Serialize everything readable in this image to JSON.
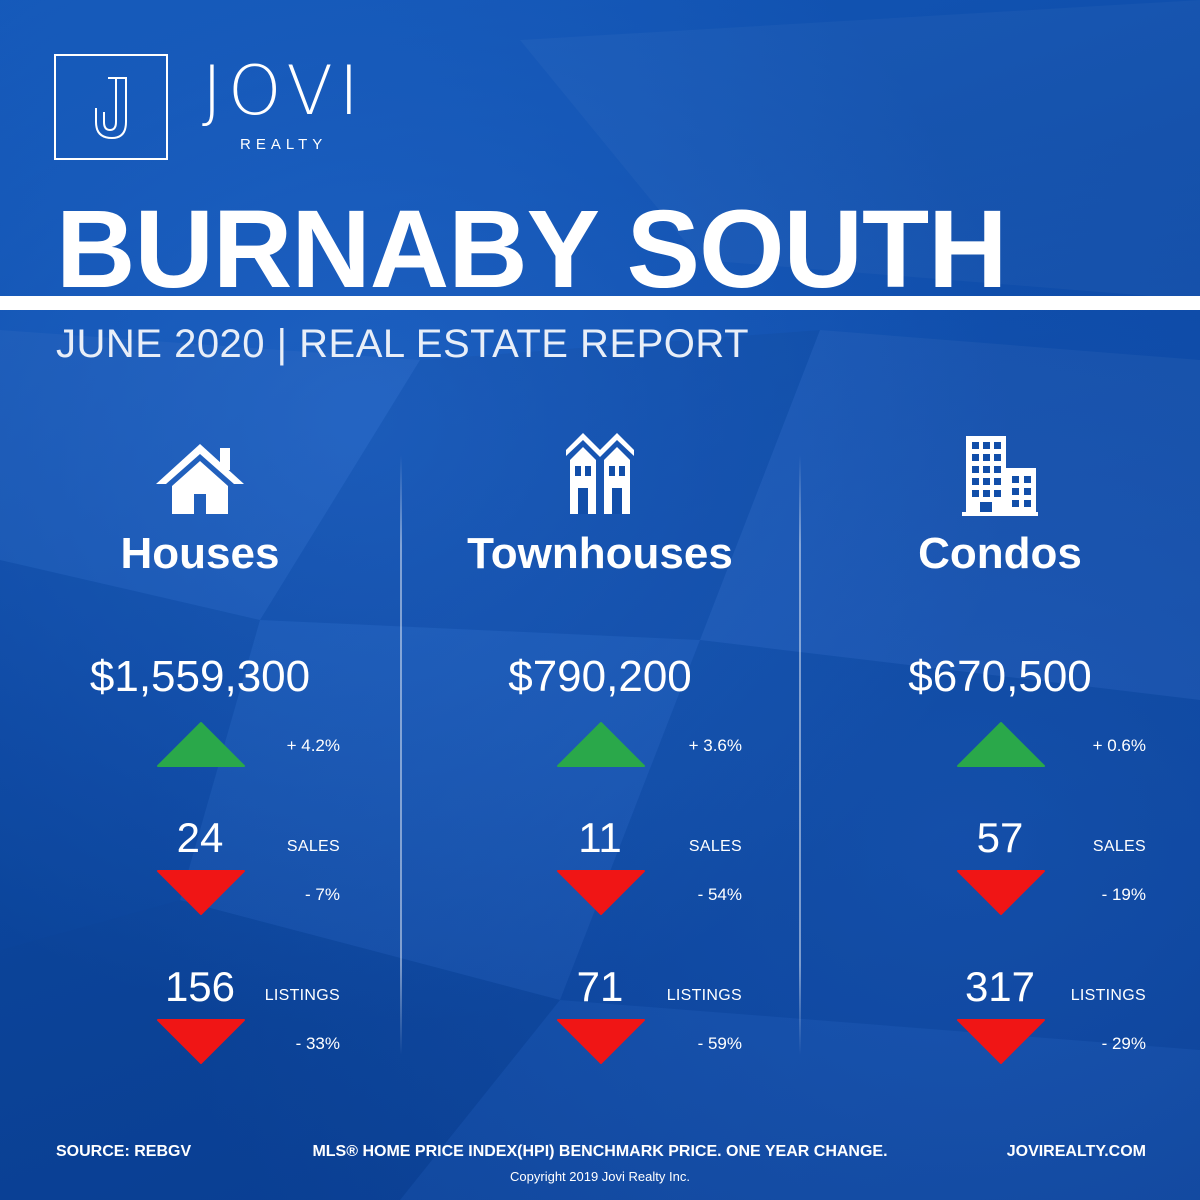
{
  "brand": {
    "name": "JOVI",
    "sub": "REALTY",
    "logo_letter": "J"
  },
  "title": "BURNABY SOUTH",
  "subtitle": "JUNE 2020 | REAL ESTATE REPORT",
  "colors": {
    "background": "#0f4fae",
    "up": "#2aa84a",
    "down": "#f01515",
    "text": "#ffffff"
  },
  "columns": [
    {
      "name": "Houses",
      "icon": "house-icon",
      "price": "$1,559,300",
      "price_change": "+ 4.2%",
      "price_direction": "up",
      "sales": "24",
      "sales_label": "SALES",
      "sales_change": "- 7%",
      "sales_direction": "down",
      "listings": "156",
      "listings_label": "LISTINGS",
      "listings_change": "- 33%",
      "listings_direction": "down"
    },
    {
      "name": "Townhouses",
      "icon": "townhouse-icon",
      "price": "$790,200",
      "price_change": "+ 3.6%",
      "price_direction": "up",
      "sales": "11",
      "sales_label": "SALES",
      "sales_change": "- 54%",
      "sales_direction": "down",
      "listings": "71",
      "listings_label": "LISTINGS",
      "listings_change": "- 59%",
      "listings_direction": "down"
    },
    {
      "name": "Condos",
      "icon": "condo-building-icon",
      "price": "$670,500",
      "price_change": "+ 0.6%",
      "price_direction": "up",
      "sales": "57",
      "sales_label": "SALES",
      "sales_change": "- 19%",
      "sales_direction": "down",
      "listings": "317",
      "listings_label": "LISTINGS",
      "listings_change": "- 29%",
      "listings_direction": "down"
    }
  ],
  "footer": {
    "source": "SOURCE:  REBGV",
    "note": "MLS® HOME PRICE INDEX(HPI) BENCHMARK PRICE. ONE YEAR CHANGE.",
    "website": "JOVIREALTY.COM",
    "copyright": "Copyright 2019 Jovi Realty Inc."
  }
}
